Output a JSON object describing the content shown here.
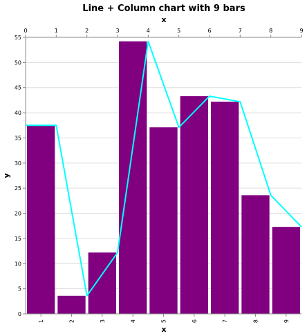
{
  "chart_data": {
    "type": "bar",
    "title": "Line + Column chart with 9 bars",
    "xlabel_bottom": "x",
    "xlabel_top": "x",
    "ylabel": "y",
    "categories": [
      "1",
      "2",
      "3",
      "4",
      "5",
      "6",
      "7",
      "8",
      "9"
    ],
    "series": [
      {
        "type": "bar",
        "values": [
          37.5,
          3.6,
          12.2,
          54.2,
          37.1,
          43.3,
          42.2,
          23.6,
          17.3
        ]
      },
      {
        "type": "line",
        "x": [
          0,
          1,
          2,
          3,
          4,
          5,
          6,
          7,
          8,
          9
        ],
        "values": [
          37.5,
          37.5,
          3.6,
          12.2,
          54.2,
          37.1,
          43.3,
          42.2,
          23.6,
          17.3
        ]
      }
    ],
    "ylim": [
      0,
      55
    ],
    "yticks": [
      0,
      5,
      10,
      15,
      20,
      25,
      30,
      35,
      40,
      45,
      50,
      55
    ],
    "top_xlim": [
      0,
      9
    ],
    "top_xticks": [
      0,
      1,
      2,
      3,
      4,
      5,
      6,
      7,
      8,
      9
    ],
    "grid": true,
    "colors": {
      "bar": "#800080",
      "line": "#00ffff"
    }
  }
}
